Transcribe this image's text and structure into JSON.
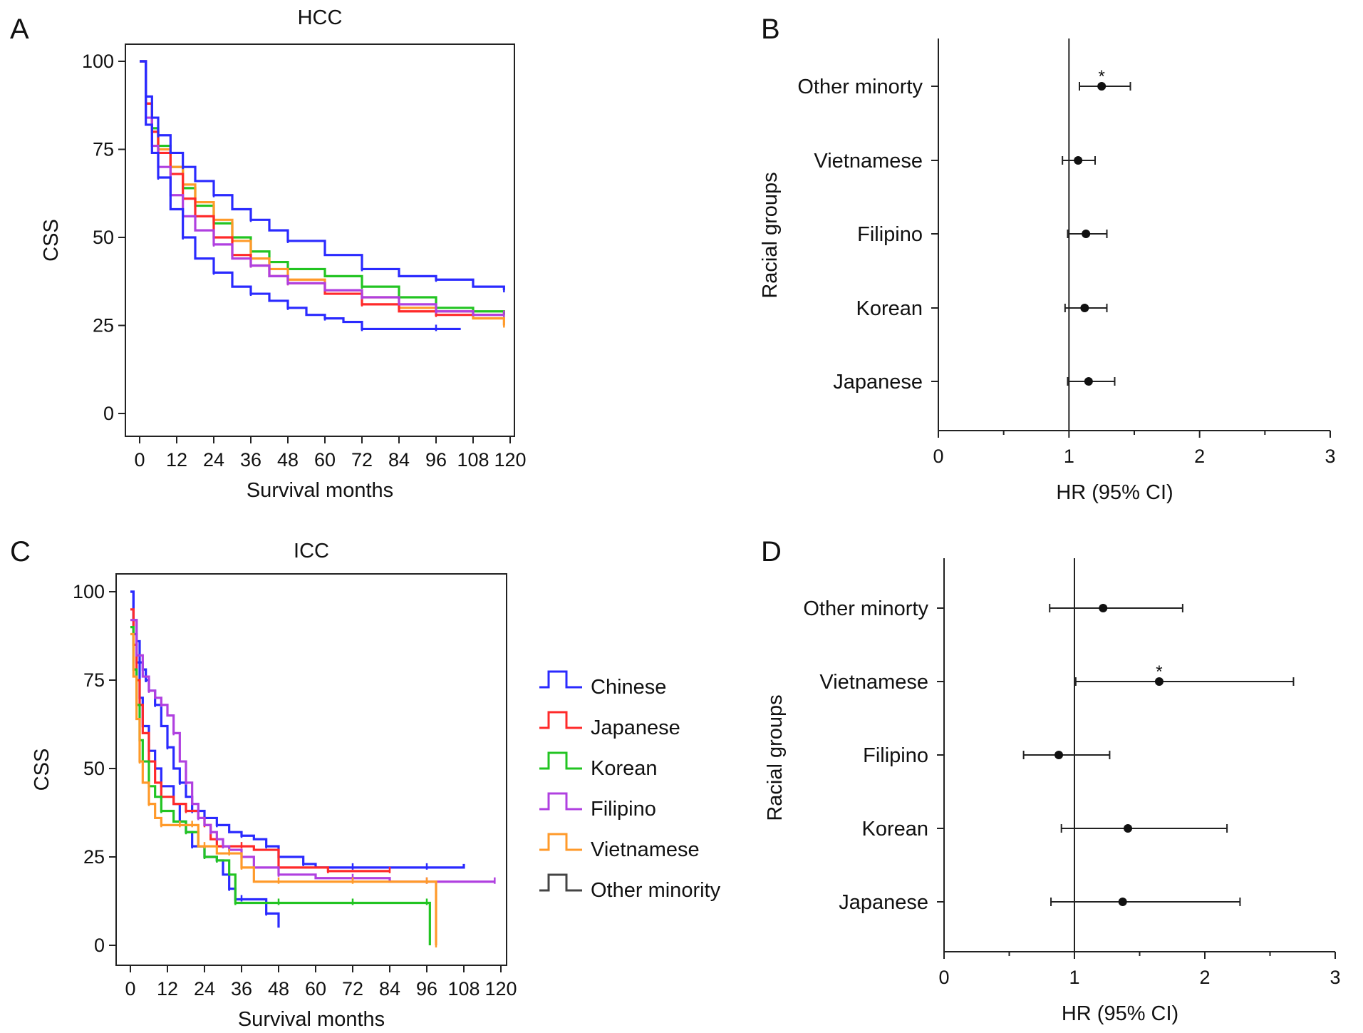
{
  "figure": {
    "legend_title": ""
  },
  "legend": {
    "items": [
      {
        "label": "Chinese",
        "color": "#2a2aff"
      },
      {
        "label": "Japanese",
        "color": "#ff2a2a"
      },
      {
        "label": "Korean",
        "color": "#22c422"
      },
      {
        "label": "Filipino",
        "color": "#b040e0"
      },
      {
        "label": "Vietnamese",
        "color": "#ff9a2a"
      },
      {
        "label": "Other minority",
        "color": "#444444"
      }
    ]
  },
  "chart_data": [
    {
      "id": "A",
      "panel_letter": "A",
      "type": "line",
      "step": true,
      "title": "HCC",
      "xlabel": "Survival months",
      "ylabel": "CSS",
      "xlim": [
        0,
        120
      ],
      "ylim": [
        0,
        100
      ],
      "xticks": [
        0,
        12,
        24,
        36,
        48,
        60,
        72,
        84,
        96,
        108,
        120
      ],
      "yticks": [
        0,
        25,
        50,
        75,
        100
      ],
      "series": [
        {
          "name": "Korean",
          "color": "#22c422",
          "x": [
            0,
            2,
            4,
            6,
            10,
            14,
            18,
            24,
            30,
            36,
            42,
            48,
            60,
            72,
            84,
            96,
            108,
            118
          ],
          "y": [
            100,
            88,
            81,
            76,
            70,
            64,
            59,
            54,
            50,
            46,
            43,
            41,
            39,
            36,
            33,
            30,
            29,
            28
          ]
        },
        {
          "name": "Vietnamese",
          "color": "#ff9a2a",
          "x": [
            0,
            2,
            4,
            6,
            10,
            14,
            18,
            24,
            30,
            36,
            42,
            48,
            60,
            72,
            84,
            96,
            108,
            118
          ],
          "y": [
            100,
            88,
            80,
            75,
            70,
            65,
            60,
            55,
            49,
            44,
            41,
            38,
            35,
            33,
            30,
            29,
            27,
            25
          ]
        },
        {
          "name": "Japanese",
          "color": "#ff2a2a",
          "x": [
            0,
            2,
            4,
            6,
            10,
            14,
            18,
            24,
            30,
            36,
            42,
            48,
            60,
            72,
            84,
            96,
            108,
            118
          ],
          "y": [
            100,
            88,
            80,
            74,
            68,
            61,
            56,
            50,
            45,
            42,
            39,
            37,
            34,
            31,
            29,
            28,
            28,
            28
          ]
        },
        {
          "name": "Filipino",
          "color": "#b040e0",
          "x": [
            0,
            2,
            4,
            6,
            10,
            14,
            18,
            24,
            30,
            36,
            42,
            48,
            60,
            72,
            84,
            96,
            108,
            118
          ],
          "y": [
            100,
            84,
            76,
            70,
            62,
            56,
            52,
            48,
            44,
            42,
            39,
            37,
            35,
            33,
            31,
            29,
            28,
            28
          ]
        },
        {
          "name": "Chinese (upper)",
          "color": "#2a2aff",
          "x": [
            0,
            2,
            4,
            6,
            10,
            14,
            18,
            24,
            30,
            36,
            42,
            48,
            60,
            72,
            84,
            96,
            108,
            118
          ],
          "y": [
            100,
            90,
            84,
            79,
            74,
            70,
            66,
            62,
            58,
            55,
            52,
            49,
            45,
            41,
            39,
            38,
            36,
            35
          ]
        },
        {
          "name": "Chinese (lower)",
          "color": "#2a2aff",
          "x": [
            0,
            2,
            4,
            6,
            10,
            14,
            18,
            24,
            30,
            36,
            42,
            48,
            54,
            60,
            66,
            72,
            84,
            96,
            104
          ],
          "y": [
            100,
            82,
            74,
            67,
            58,
            50,
            44,
            40,
            36,
            34,
            32,
            30,
            28,
            27,
            26,
            24,
            24,
            24,
            24
          ]
        }
      ]
    },
    {
      "id": "C",
      "panel_letter": "C",
      "type": "line",
      "step": true,
      "title": "ICC",
      "xlabel": "Survival months",
      "ylabel": "CSS",
      "xlim": [
        0,
        120
      ],
      "ylim": [
        0,
        100
      ],
      "xticks": [
        0,
        12,
        24,
        36,
        48,
        60,
        72,
        84,
        96,
        108,
        120
      ],
      "yticks": [
        0,
        25,
        50,
        75,
        100
      ],
      "series": [
        {
          "name": "Chinese (upper)",
          "color": "#2a2aff",
          "x": [
            0,
            1,
            2,
            3,
            4,
            5,
            6,
            8,
            10,
            12,
            14,
            16,
            18,
            20,
            24,
            28,
            32,
            36,
            40,
            44,
            48,
            56,
            60,
            72,
            84,
            96,
            108
          ],
          "y": [
            100,
            92,
            86,
            80,
            78,
            75,
            72,
            68,
            62,
            56,
            50,
            46,
            42,
            38,
            36,
            34,
            32,
            31,
            30,
            28,
            25,
            23,
            22,
            22,
            22,
            22,
            23
          ]
        },
        {
          "name": "Chinese (lower)",
          "color": "#2a2aff",
          "x": [
            0,
            1,
            2,
            3,
            4,
            6,
            8,
            10,
            14,
            16,
            18,
            20,
            24,
            28,
            30,
            32,
            34,
            36,
            40,
            44,
            48
          ],
          "y": [
            100,
            88,
            80,
            70,
            62,
            55,
            50,
            45,
            40,
            35,
            32,
            28,
            25,
            24,
            20,
            16,
            13,
            13,
            13,
            9,
            5
          ]
        },
        {
          "name": "Japanese",
          "color": "#ff2a2a",
          "x": [
            0,
            1,
            2,
            3,
            4,
            6,
            8,
            10,
            14,
            18,
            22,
            24,
            26,
            28,
            32,
            36,
            40,
            48,
            56,
            64,
            72,
            84
          ],
          "y": [
            95,
            85,
            75,
            68,
            60,
            52,
            46,
            42,
            40,
            38,
            36,
            34,
            30,
            28,
            28,
            28,
            27,
            22,
            22,
            21,
            21,
            21
          ]
        },
        {
          "name": "Korean",
          "color": "#22c422",
          "x": [
            0,
            1,
            2,
            3,
            4,
            6,
            8,
            10,
            14,
            18,
            22,
            24,
            26,
            28,
            32,
            34,
            40,
            48,
            60,
            72,
            84,
            96,
            97
          ],
          "y": [
            90,
            78,
            68,
            58,
            52,
            45,
            42,
            38,
            35,
            32,
            28,
            25,
            25,
            24,
            20,
            12,
            12,
            12,
            12,
            12,
            12,
            12,
            0
          ]
        },
        {
          "name": "Filipino",
          "color": "#b040e0",
          "x": [
            0,
            2,
            4,
            6,
            8,
            10,
            12,
            14,
            16,
            18,
            20,
            22,
            24,
            26,
            28,
            30,
            32,
            36,
            40,
            48,
            60,
            72,
            84,
            96,
            108,
            118
          ],
          "y": [
            92,
            82,
            76,
            72,
            70,
            68,
            65,
            60,
            52,
            46,
            40,
            36,
            34,
            32,
            30,
            28,
            27,
            25,
            22,
            20,
            19,
            19,
            18,
            18,
            18,
            18
          ]
        },
        {
          "name": "Vietnamese",
          "color": "#ff9a2a",
          "x": [
            0,
            1,
            2,
            3,
            4,
            6,
            8,
            10,
            12,
            16,
            18,
            20,
            22,
            24,
            28,
            32,
            34,
            36,
            40,
            48,
            60,
            72,
            84,
            96,
            98,
            99
          ],
          "y": [
            88,
            76,
            64,
            52,
            46,
            40,
            36,
            34,
            34,
            34,
            34,
            34,
            28,
            28,
            26,
            26,
            26,
            22,
            18,
            18,
            18,
            18,
            18,
            18,
            18,
            0
          ]
        }
      ]
    },
    {
      "id": "B",
      "panel_letter": "B",
      "type": "forest",
      "xlabel": "HR (95% CI)",
      "ylabel": "Racial groups",
      "xlim": [
        0,
        3
      ],
      "xticks": [
        0,
        1,
        2,
        3
      ],
      "reference_line": 1,
      "categories": [
        "Other minorty",
        "Vietnamese",
        "Filipino",
        "Korean",
        "Japanese"
      ],
      "hr": [
        1.25,
        1.07,
        1.13,
        1.12,
        1.15
      ],
      "ci_lower": [
        1.08,
        0.95,
        0.99,
        0.97,
        0.99
      ],
      "ci_upper": [
        1.47,
        1.2,
        1.29,
        1.29,
        1.35
      ],
      "significance": [
        "*",
        "",
        "",
        "",
        ""
      ]
    },
    {
      "id": "D",
      "panel_letter": "D",
      "type": "forest",
      "xlabel": "HR (95% CI)",
      "ylabel": "Racial groups",
      "xlim": [
        0,
        3
      ],
      "xticks": [
        0,
        1,
        2,
        3
      ],
      "reference_line": 1,
      "categories": [
        "Other minorty",
        "Vietnamese",
        "Filipino",
        "Korean",
        "Japanese"
      ],
      "hr": [
        1.22,
        1.65,
        0.88,
        1.41,
        1.37
      ],
      "ci_lower": [
        0.81,
        1.01,
        0.61,
        0.9,
        0.82
      ],
      "ci_upper": [
        1.83,
        2.68,
        1.27,
        2.17,
        2.27
      ],
      "significance": [
        "",
        "*",
        "",
        "",
        ""
      ]
    }
  ]
}
